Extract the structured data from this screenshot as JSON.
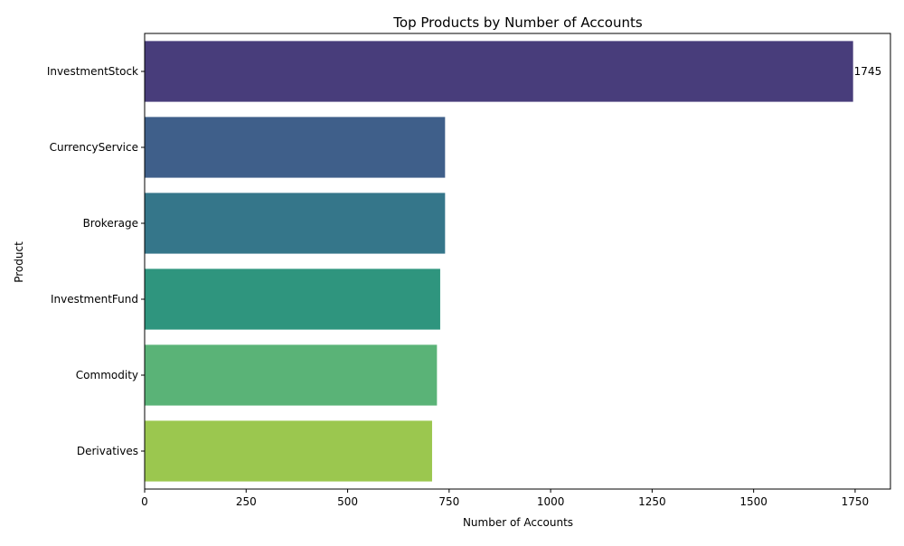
{
  "chart_data": {
    "type": "bar",
    "orientation": "horizontal",
    "title": "Top Products by Number of Accounts",
    "xlabel": "Number of Accounts",
    "ylabel": "Product",
    "categories": [
      "InvestmentStock",
      "CurrencyService",
      "Brokerage",
      "InvestmentFund",
      "Commodity",
      "Derivatives"
    ],
    "values": [
      1745,
      740,
      740,
      728,
      720,
      708
    ],
    "colors": [
      "#483d7b",
      "#3f5f8a",
      "#35768a",
      "#2f957e",
      "#5ab377",
      "#9bc74f"
    ],
    "data_labels": [
      {
        "category": "InvestmentStock",
        "text": "1745"
      }
    ],
    "xlim": [
      0,
      1837
    ],
    "xticks": [
      0,
      250,
      500,
      750,
      1000,
      1250,
      1500,
      1750
    ],
    "xtick_labels": [
      "0",
      "250",
      "500",
      "750",
      "1000",
      "1250",
      "1500",
      "1750"
    ],
    "grid": false,
    "legend": "none"
  }
}
